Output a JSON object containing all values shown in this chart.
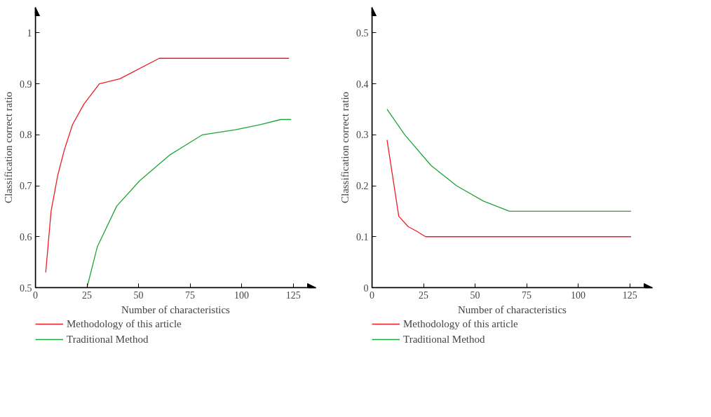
{
  "chart_data": [
    {
      "type": "line",
      "xlabel": "Number of characteristics",
      "ylabel": "Classification correct ratio",
      "xlim": [
        0,
        136
      ],
      "ylim": [
        0.5,
        1.05
      ],
      "xticks": [
        0,
        25,
        50,
        75,
        100,
        125
      ],
      "yticks": [
        0.5,
        0.6,
        0.7,
        0.8,
        0.9,
        {
          "value": 1,
          "label": "1"
        }
      ],
      "grid": false,
      "legend": "bottom",
      "series": [
        {
          "name": "Methodology of this article",
          "color": "#ee1c25",
          "x": [
            5,
            7.6,
            10.8,
            14,
            18,
            23.5,
            31,
            41,
            60,
            123
          ],
          "values": [
            0.53,
            0.65,
            0.72,
            0.77,
            0.82,
            0.86,
            0.9,
            0.91,
            0.95,
            0.95
          ]
        },
        {
          "name": "Traditional Method",
          "color": "#1ea53a",
          "x": [
            25,
            30,
            39.4,
            50.6,
            65,
            81,
            97,
            109,
            119,
            124
          ],
          "values": [
            0.5,
            0.58,
            0.66,
            0.71,
            0.76,
            0.8,
            0.81,
            0.82,
            0.83,
            0.83
          ]
        }
      ]
    },
    {
      "type": "line",
      "xlabel": "Number of characteristics",
      "ylabel": "Classification correct ratio",
      "xlim": [
        0,
        136
      ],
      "ylim": [
        0,
        0.55
      ],
      "xticks": [
        0,
        25,
        50,
        75,
        100,
        125
      ],
      "yticks": [
        0,
        0.1,
        0.2,
        0.3,
        0.4,
        0.5
      ],
      "grid": false,
      "legend": "bottom",
      "series": [
        {
          "name": "Methodology of this article",
          "color": "#ee1c25",
          "x": [
            7.3,
            13,
            17.5,
            22,
            26,
            125.6
          ],
          "values": [
            0.29,
            0.14,
            0.12,
            0.11,
            0.1,
            0.1
          ]
        },
        {
          "name": "Traditional Method",
          "color": "#1ea53a",
          "x": [
            7.3,
            15.9,
            28.6,
            41,
            54,
            66.6,
            76,
            125.6
          ],
          "values": [
            0.35,
            0.3,
            0.24,
            0.2,
            0.17,
            0.15,
            0.15,
            0.15
          ]
        }
      ]
    }
  ]
}
